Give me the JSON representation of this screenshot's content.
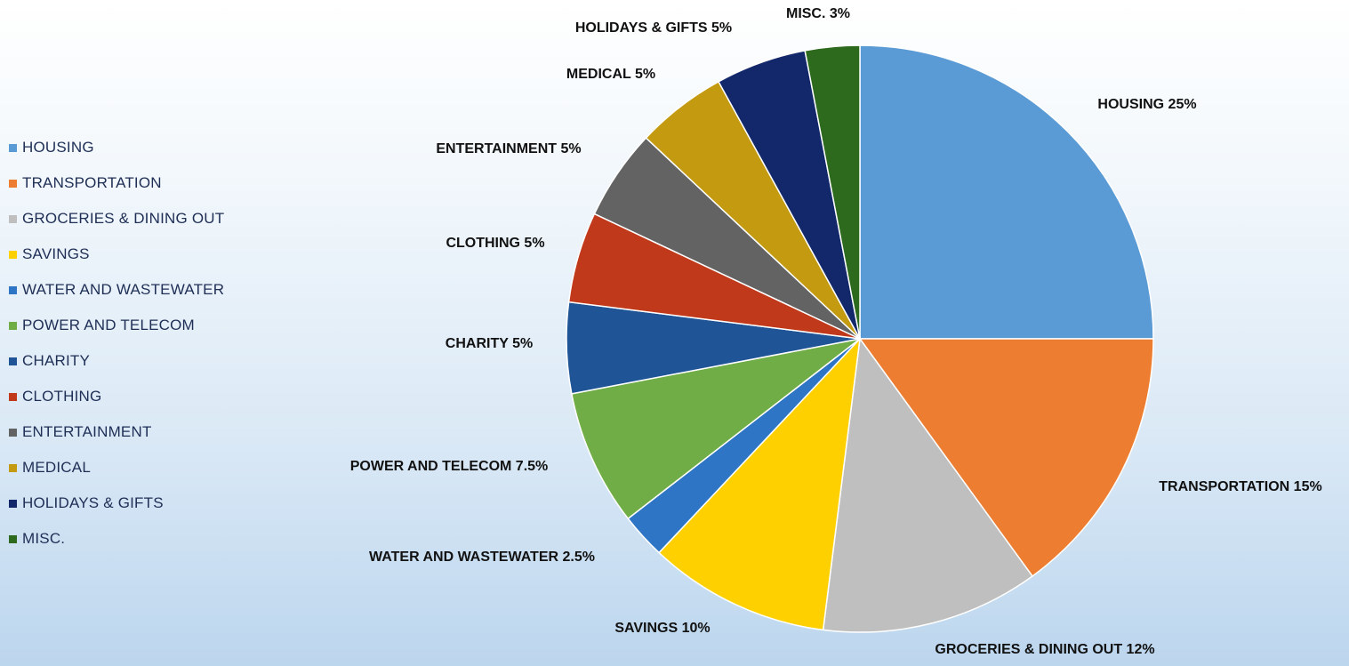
{
  "chart_data": {
    "type": "pie",
    "title": "",
    "legend_position": "left",
    "slices": [
      {
        "name": "HOUSING",
        "value": 25,
        "label": "HOUSING 25%",
        "color": "#5B9BD5"
      },
      {
        "name": "TRANSPORTATION",
        "value": 15,
        "label": "TRANSPORTATION 15%",
        "color": "#ED7D31"
      },
      {
        "name": "GROCERIES & DINING OUT",
        "value": 12,
        "label": "GROCERIES & DINING OUT 12%",
        "color": "#BFBFBF"
      },
      {
        "name": "SAVINGS",
        "value": 10,
        "label": "SAVINGS 10%",
        "color": "#FFD000"
      },
      {
        "name": "WATER AND WASTEWATER",
        "value": 2.5,
        "label": "WATER AND WASTEWATER 2.5%",
        "color": "#2E75C6"
      },
      {
        "name": "POWER AND TELECOM",
        "value": 7.5,
        "label": "POWER AND TELECOM 7.5%",
        "color": "#70AD47"
      },
      {
        "name": "CHARITY",
        "value": 5,
        "label": "CHARITY  5%",
        "color": "#1F5597"
      },
      {
        "name": "CLOTHING",
        "value": 5,
        "label": "CLOTHING 5%",
        "color": "#C0391A"
      },
      {
        "name": "ENTERTAINMENT",
        "value": 5,
        "label": "ENTERTAINMENT 5%",
        "color": "#636363"
      },
      {
        "name": "MEDICAL",
        "value": 5,
        "label": "MEDICAL 5%",
        "color": "#C49A10"
      },
      {
        "name": "HOLIDAYS & GIFTS",
        "value": 5,
        "label": "HOLIDAYS & GIFTS 5%",
        "color": "#13286B"
      },
      {
        "name": "MISC.",
        "value": 3,
        "label": "MISC. 3%",
        "color": "#2D6A1E"
      }
    ]
  }
}
